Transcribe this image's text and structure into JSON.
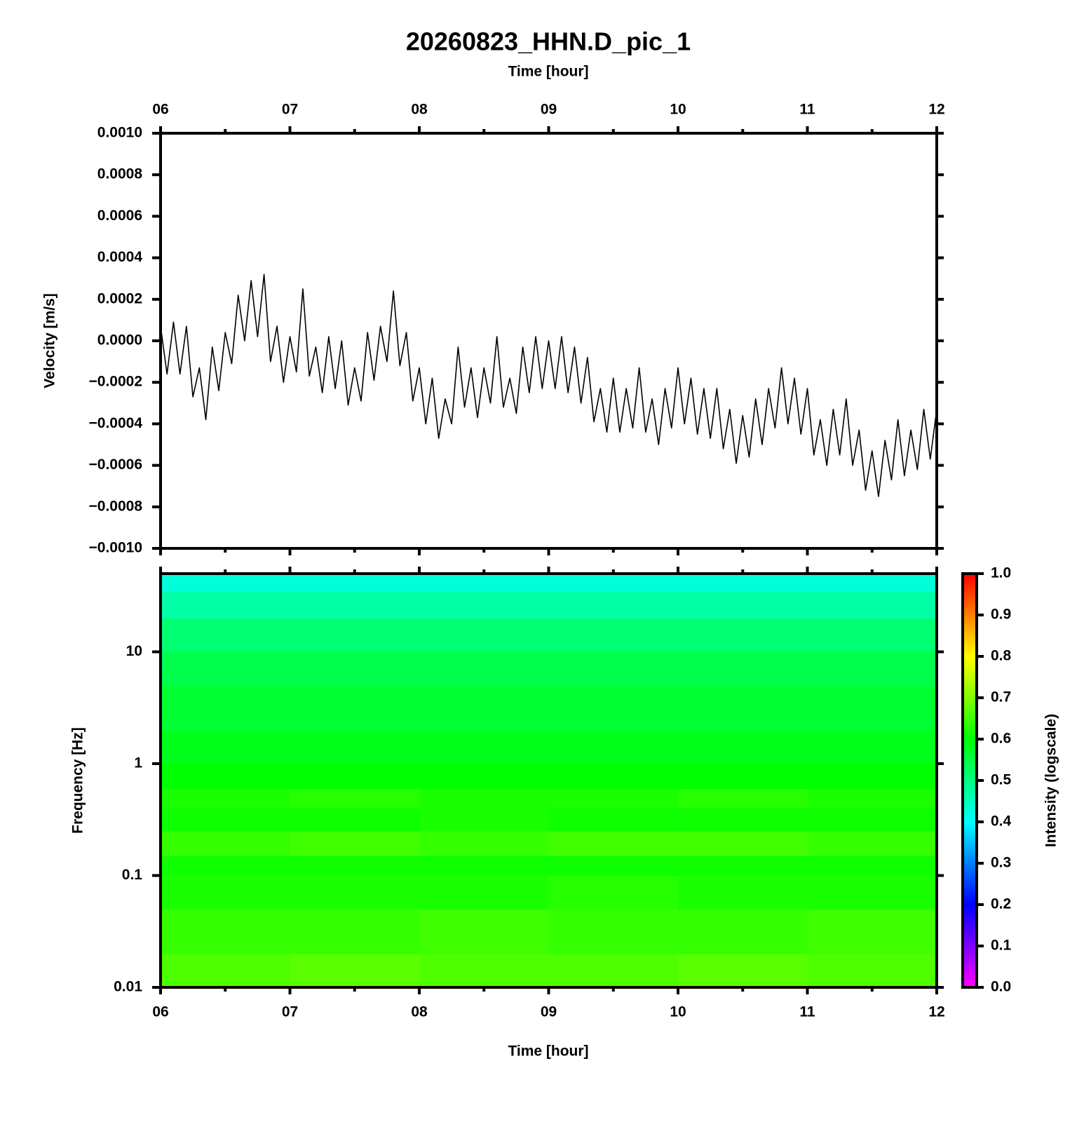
{
  "chart_data": [
    {
      "type": "line",
      "title": "20260823_HHN.D_pic_1",
      "xlabel": "Time [hour]",
      "ylabel": "Velocity [m/s]",
      "xaxis_position": "top",
      "xlim": [
        6,
        12
      ],
      "ylim": [
        -0.001,
        0.001
      ],
      "xticks": [
        {
          "value": 6,
          "label": "06"
        },
        {
          "value": 7,
          "label": "07"
        },
        {
          "value": 8,
          "label": "08"
        },
        {
          "value": 9,
          "label": "09"
        },
        {
          "value": 10,
          "label": "10"
        },
        {
          "value": 11,
          "label": "11"
        },
        {
          "value": 12,
          "label": "12"
        }
      ],
      "xminorticks": [
        6.5,
        7.5,
        8.5,
        9.5,
        10.5,
        11.5
      ],
      "yticks": [
        {
          "value": 0.001,
          "label": "0.0010"
        },
        {
          "value": 0.0008,
          "label": "0.0008"
        },
        {
          "value": 0.0006,
          "label": "0.0006"
        },
        {
          "value": 0.0004,
          "label": "0.0004"
        },
        {
          "value": 0.0002,
          "label": "0.0002"
        },
        {
          "value": 0,
          "label": "0.0000"
        },
        {
          "value": -0.0002,
          "label": "−0.0002"
        },
        {
          "value": -0.0004,
          "label": "−0.0004"
        },
        {
          "value": -0.0006,
          "label": "−0.0006"
        },
        {
          "value": -0.0008,
          "label": "−0.0008"
        },
        {
          "value": -0.001,
          "label": "−0.0010"
        }
      ],
      "x": [
        6.0,
        6.05,
        6.1,
        6.15,
        6.2,
        6.25,
        6.3,
        6.35,
        6.4,
        6.45,
        6.5,
        6.55,
        6.6,
        6.65,
        6.7,
        6.75,
        6.8,
        6.85,
        6.9,
        6.95,
        7.0,
        7.05,
        7.1,
        7.15,
        7.2,
        7.25,
        7.3,
        7.35,
        7.4,
        7.45,
        7.5,
        7.55,
        7.6,
        7.65,
        7.7,
        7.75,
        7.8,
        7.85,
        7.9,
        7.95,
        8.0,
        8.05,
        8.1,
        8.15,
        8.2,
        8.25,
        8.3,
        8.35,
        8.4,
        8.45,
        8.5,
        8.55,
        8.6,
        8.65,
        8.7,
        8.75,
        8.8,
        8.85,
        8.9,
        8.95,
        9.0,
        9.05,
        9.1,
        9.15,
        9.2,
        9.25,
        9.3,
        9.35,
        9.4,
        9.45,
        9.5,
        9.55,
        9.6,
        9.65,
        9.7,
        9.75,
        9.8,
        9.85,
        9.9,
        9.95,
        10.0,
        10.05,
        10.1,
        10.15,
        10.2,
        10.25,
        10.3,
        10.35,
        10.4,
        10.45,
        10.5,
        10.55,
        10.6,
        10.65,
        10.7,
        10.75,
        10.8,
        10.85,
        10.9,
        10.95,
        11.0,
        11.05,
        11.1,
        11.15,
        11.2,
        11.25,
        11.3,
        11.35,
        11.4,
        11.45,
        11.5,
        11.55,
        11.6,
        11.65,
        11.7,
        11.75,
        11.8,
        11.85,
        11.9,
        11.95,
        12.0
      ],
      "series": [
        {
          "color": "#000000",
          "values": [
            7e-05,
            -0.00016,
            9e-05,
            -0.00016,
            7e-05,
            -0.00027,
            -0.00013,
            -0.00038,
            -3e-05,
            -0.00024,
            4e-05,
            -0.00011,
            0.00022,
            0.0,
            0.00029,
            2e-05,
            0.00032,
            -0.0001,
            7e-05,
            -0.0002,
            2e-05,
            -0.00015,
            0.00025,
            -0.00017,
            -3e-05,
            -0.00025,
            2e-05,
            -0.00023,
            0.0,
            -0.00031,
            -0.00013,
            -0.00029,
            4e-05,
            -0.00019,
            7e-05,
            -0.0001,
            0.00024,
            -0.00012,
            4e-05,
            -0.00029,
            -0.00013,
            -0.0004,
            -0.00018,
            -0.00047,
            -0.00028,
            -0.0004,
            -3e-05,
            -0.00032,
            -0.00013,
            -0.00037,
            -0.00013,
            -0.0003,
            2e-05,
            -0.00032,
            -0.00018,
            -0.00035,
            -3e-05,
            -0.00025,
            2e-05,
            -0.00023,
            0.0,
            -0.00023,
            2e-05,
            -0.00025,
            -3e-05,
            -0.0003,
            -8e-05,
            -0.00039,
            -0.00023,
            -0.00044,
            -0.00018,
            -0.00044,
            -0.00023,
            -0.00042,
            -0.00013,
            -0.00044,
            -0.00028,
            -0.0005,
            -0.00023,
            -0.00042,
            -0.00013,
            -0.0004,
            -0.00018,
            -0.00045,
            -0.00023,
            -0.00047,
            -0.00023,
            -0.00052,
            -0.00033,
            -0.00059,
            -0.00036,
            -0.00056,
            -0.00028,
            -0.0005,
            -0.00023,
            -0.00042,
            -0.00013,
            -0.0004,
            -0.00018,
            -0.00045,
            -0.00023,
            -0.00055,
            -0.00038,
            -0.0006,
            -0.00033,
            -0.00055,
            -0.00028,
            -0.0006,
            -0.00043,
            -0.00072,
            -0.00053,
            -0.00075,
            -0.00048,
            -0.00067,
            -0.00038,
            -0.00065,
            -0.00043,
            -0.00062,
            -0.00033,
            -0.00057,
            -0.00033
          ]
        }
      ]
    },
    {
      "type": "heatmap",
      "xlabel": "Time [hour]",
      "ylabel": "Frequency [Hz]",
      "yscale": "log",
      "xlim": [
        6,
        12
      ],
      "ylim": [
        0.01,
        50
      ],
      "xticks": [
        {
          "value": 6,
          "label": "06"
        },
        {
          "value": 7,
          "label": "07"
        },
        {
          "value": 8,
          "label": "08"
        },
        {
          "value": 9,
          "label": "09"
        },
        {
          "value": 10,
          "label": "10"
        },
        {
          "value": 11,
          "label": "11"
        },
        {
          "value": 12,
          "label": "12"
        }
      ],
      "xminorticks": [
        6.5,
        7.5,
        8.5,
        9.5,
        10.5,
        11.5
      ],
      "yticks": [
        0.01,
        0.1,
        1,
        10
      ],
      "x_edges": [
        6,
        7,
        8,
        9,
        10,
        11,
        12
      ],
      "y_edges": [
        0.01,
        0.02,
        0.05,
        0.1,
        0.15,
        0.25,
        0.4,
        0.6,
        1,
        2,
        5,
        10,
        20,
        35,
        50
      ],
      "z": [
        [
          0.66,
          0.67,
          0.66,
          0.66,
          0.67,
          0.66
        ],
        [
          0.64,
          0.64,
          0.65,
          0.64,
          0.64,
          0.65
        ],
        [
          0.62,
          0.62,
          0.62,
          0.63,
          0.62,
          0.62
        ],
        [
          0.61,
          0.61,
          0.61,
          0.61,
          0.61,
          0.61
        ],
        [
          0.64,
          0.65,
          0.64,
          0.65,
          0.65,
          0.64
        ],
        [
          0.61,
          0.61,
          0.62,
          0.61,
          0.61,
          0.61
        ],
        [
          0.62,
          0.63,
          0.62,
          0.62,
          0.63,
          0.62
        ],
        [
          0.6,
          0.6,
          0.6,
          0.6,
          0.6,
          0.6
        ],
        [
          0.58,
          0.58,
          0.58,
          0.58,
          0.58,
          0.58
        ],
        [
          0.56,
          0.56,
          0.56,
          0.56,
          0.56,
          0.56
        ],
        [
          0.54,
          0.54,
          0.54,
          0.54,
          0.54,
          0.54
        ],
        [
          0.51,
          0.51,
          0.51,
          0.51,
          0.51,
          0.51
        ],
        [
          0.47,
          0.47,
          0.47,
          0.47,
          0.47,
          0.47
        ],
        [
          0.43,
          0.43,
          0.43,
          0.43,
          0.43,
          0.43
        ]
      ],
      "colorbar": {
        "label": "Intensity (logscale)",
        "lim": [
          0,
          1
        ],
        "ticks": [
          {
            "value": 0,
            "label": "0.0"
          },
          {
            "value": 0.1,
            "label": "0.1"
          },
          {
            "value": 0.2,
            "label": "0.2"
          },
          {
            "value": 0.3,
            "label": "0.3"
          },
          {
            "value": 0.4,
            "label": "0.4"
          },
          {
            "value": 0.5,
            "label": "0.5"
          },
          {
            "value": 0.6,
            "label": "0.6"
          },
          {
            "value": 0.7,
            "label": "0.7"
          },
          {
            "value": 0.8,
            "label": "0.8"
          },
          {
            "value": 0.9,
            "label": "0.9"
          },
          {
            "value": 1,
            "label": "1.0"
          }
        ],
        "colorscale": [
          [
            0,
            "#ff00ff"
          ],
          [
            0.2,
            "#0000ff"
          ],
          [
            0.4,
            "#00ffff"
          ],
          [
            0.6,
            "#00ff00"
          ],
          [
            0.8,
            "#ffff00"
          ],
          [
            1,
            "#ff0000"
          ]
        ]
      }
    }
  ]
}
